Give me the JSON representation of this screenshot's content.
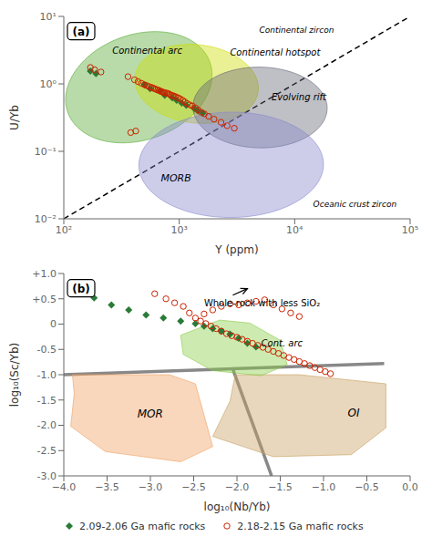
{
  "chart_data": [
    {
      "type": "scatter",
      "title": "(a)",
      "xlabel": "Y (ppm)",
      "ylabel": "U/Yb",
      "log": true,
      "xlim": [
        100,
        100000
      ],
      "ylim": [
        0.01,
        10
      ],
      "xticks": [
        {
          "value": 100,
          "label": "10²"
        },
        {
          "value": 1000,
          "label": "10³"
        },
        {
          "value": 10000,
          "label": "10⁴"
        },
        {
          "value": 100000,
          "label": "10⁵"
        }
      ],
      "yticks": [
        {
          "value": 0.01,
          "label": "10⁻²"
        },
        {
          "value": 0.1,
          "label": "10⁻¹"
        },
        {
          "value": 1,
          "label": "10⁰"
        },
        {
          "value": 10,
          "label": "10¹"
        }
      ],
      "grid": false,
      "regions": [
        {
          "name": "Continental arc",
          "shape": "ellipse",
          "color": "#55aa33",
          "cx_log10": 2.65,
          "cy_log10": -0.05,
          "rx": 0.6,
          "ry": 0.85,
          "angle": -20
        },
        {
          "name": "Continental hotspot",
          "shape": "ellipse",
          "color": "#ccdd00",
          "cx_log10": 3.15,
          "cy_log10": 0.0,
          "rx": 0.52,
          "ry": 0.6,
          "angle": 25
        },
        {
          "name": "Evolving rift",
          "shape": "ellipse",
          "color": "#666677",
          "cx_log10": 3.7,
          "cy_log10": -0.35,
          "rx": 0.58,
          "ry": 0.6,
          "angle": 15
        },
        {
          "name": "MORB",
          "shape": "ellipse",
          "color": "#8888cc",
          "cx_log10": 3.45,
          "cy_log10": -1.2,
          "rx": 0.8,
          "ry": 0.78,
          "angle": 10
        }
      ],
      "lines": [
        {
          "x": [
            100,
            100000
          ],
          "y": [
            0.01,
            10
          ],
          "color": "#000000",
          "line_style": "dashed"
        }
      ],
      "annotations": [
        "Continental zircon",
        "Oceanic crust zircon"
      ],
      "series": [
        {
          "color": "#2a7a38",
          "marker": "diamond",
          "x": [
            170,
            190,
            500,
            560,
            680,
            750,
            870,
            950,
            1050,
            1150,
            1350,
            1450,
            1600
          ],
          "values": [
            1.55,
            1.42,
            0.97,
            0.85,
            0.78,
            0.68,
            0.62,
            0.57,
            0.52,
            0.48,
            0.43,
            0.4,
            0.37
          ]
        },
        {
          "color": "#cc2200",
          "marker": "circle",
          "x": [
            170,
            185,
            210,
            360,
            410,
            440,
            470,
            500,
            525,
            550,
            570,
            590,
            610,
            630,
            650,
            670,
            690,
            710,
            730,
            750,
            775,
            800,
            825,
            850,
            875,
            900,
            940,
            980,
            1020,
            1070,
            1120,
            1170,
            1230,
            1300,
            1380,
            1460,
            1550,
            1650,
            1800,
            2000,
            2300,
            2600,
            3000,
            420,
            380
          ],
          "values": [
            1.75,
            1.62,
            1.5,
            1.28,
            1.15,
            1.08,
            1.02,
            0.97,
            0.94,
            0.91,
            0.89,
            0.87,
            0.85,
            0.83,
            0.81,
            0.8,
            0.78,
            0.76,
            0.75,
            0.74,
            0.73,
            0.72,
            0.7,
            0.68,
            0.67,
            0.66,
            0.64,
            0.62,
            0.6,
            0.57,
            0.54,
            0.51,
            0.49,
            0.47,
            0.44,
            0.41,
            0.38,
            0.36,
            0.33,
            0.3,
            0.27,
            0.24,
            0.22,
            0.2,
            0.19
          ]
        }
      ]
    },
    {
      "type": "scatter",
      "title": "(b)",
      "xlabel": "log₁₀(Nb/Yb)",
      "ylabel": "log₁₀(Sc/Yb)",
      "xlim": [
        -4.0,
        0
      ],
      "ylim": [
        -3.0,
        1.0
      ],
      "xticks": [
        {
          "value": -4.0,
          "label": "−4.0"
        },
        {
          "value": -3.5,
          "label": "−3.5"
        },
        {
          "value": -3.0,
          "label": "−3.0"
        },
        {
          "value": -2.5,
          "label": "−2.5"
        },
        {
          "value": -2.0,
          "label": "−2.0"
        },
        {
          "value": -1.5,
          "label": "−1.5"
        },
        {
          "value": -1.0,
          "label": "−1.0"
        },
        {
          "value": -0.5,
          "label": "−0.5"
        },
        {
          "value": 0.0,
          "label": "0.0"
        }
      ],
      "yticks": [
        {
          "value": -3.0,
          "label": "-3.0"
        },
        -2.5,
        {
          "value": -2.0,
          "label": "-2.0"
        },
        -1.5,
        {
          "value": -1.0,
          "label": "-1.0"
        },
        -0.5,
        0,
        {
          "value": 0.5,
          "label": "+0.5"
        },
        {
          "value": 1.0,
          "label": "+1.0"
        }
      ],
      "grid": false,
      "legend": "bottom",
      "regions": [
        {
          "name": "MOR",
          "shape": "polygon",
          "color": "#f0a060",
          "label_xy": [
            -3.15,
            -1.85
          ],
          "points": [
            [
              -3.9,
              -1.0
            ],
            [
              -2.78,
              -1.0
            ],
            [
              -2.48,
              -1.18
            ],
            [
              -2.28,
              -2.42
            ],
            [
              -2.65,
              -2.72
            ],
            [
              -3.52,
              -2.52
            ],
            [
              -3.92,
              -2.02
            ],
            [
              -3.88,
              -1.38
            ]
          ]
        },
        {
          "name": "OI",
          "shape": "polygon",
          "color": "#c8a060",
          "label_xy": [
            -0.72,
            -1.82
          ],
          "points": [
            [
              -2.02,
              -1.0
            ],
            [
              -1.28,
              -1.0
            ],
            [
              -0.28,
              -1.18
            ],
            [
              -0.28,
              -2.05
            ],
            [
              -0.68,
              -2.58
            ],
            [
              -1.58,
              -2.62
            ],
            [
              -2.28,
              -2.22
            ],
            [
              -2.08,
              -1.52
            ]
          ]
        },
        {
          "name": "Cont. arc",
          "shape": "polygon",
          "color": "#88cc44",
          "label_xy": [
            -1.72,
            -0.45
          ],
          "points": [
            [
              -2.65,
              -0.22
            ],
            [
              -2.2,
              0.08
            ],
            [
              -1.85,
              0.02
            ],
            [
              -1.5,
              -0.32
            ],
            [
              -1.42,
              -0.8
            ],
            [
              -1.72,
              -1.02
            ],
            [
              -2.28,
              -0.92
            ],
            [
              -2.62,
              -0.6
            ]
          ]
        }
      ],
      "lines": [
        {
          "x": [
            -4.0,
            -0.3
          ],
          "y": [
            -1.0,
            -0.78
          ],
          "color": "#888888",
          "line_style": "solid"
        },
        {
          "x": [
            -2.05,
            -1.6
          ],
          "y": [
            -0.88,
            -3.0
          ],
          "color": "#888888",
          "line_style": "solid"
        }
      ],
      "annotations": [
        {
          "text": "Whole-rock with less SiO₂",
          "xy": [
            -1.88,
            0.7
          ],
          "xytext": [
            -2.38,
            0.32
          ]
        }
      ],
      "series": [
        {
          "name": "2.09-2.06 Ga mafic rocks",
          "color": "#2a7a38",
          "marker": "diamond",
          "x": [
            -3.65,
            -3.45,
            -3.25,
            -3.05,
            -2.85,
            -2.65,
            -2.48,
            -2.38,
            -2.28,
            -2.18,
            -2.08,
            -1.98,
            -1.88,
            -1.78
          ],
          "values": [
            0.52,
            0.38,
            0.28,
            0.18,
            0.12,
            0.06,
            0.01,
            -0.04,
            -0.09,
            -0.14,
            -0.2,
            -0.28,
            -0.38,
            -0.45
          ]
        },
        {
          "name": "2.18-2.15 Ga mafic rocks",
          "color": "#cc2200",
          "marker": "circle",
          "x": [
            -2.95,
            -2.82,
            -2.72,
            -2.62,
            -2.55,
            -2.48,
            -2.42,
            -2.36,
            -2.3,
            -2.24,
            -2.18,
            -2.12,
            -2.06,
            -2.0,
            -1.94,
            -1.88,
            -1.82,
            -1.76,
            -1.7,
            -1.64,
            -1.58,
            -1.52,
            -1.46,
            -1.4,
            -1.34,
            -1.28,
            -1.22,
            -1.16,
            -1.1,
            -1.04,
            -0.98,
            -0.92,
            -2.38,
            -2.28,
            -2.18,
            -2.08,
            -1.98,
            -1.88,
            -1.78,
            -1.68,
            -1.58,
            -1.48,
            -1.38,
            -1.28
          ],
          "values": [
            0.6,
            0.5,
            0.42,
            0.35,
            0.22,
            0.12,
            0.06,
            0.01,
            -0.04,
            -0.09,
            -0.14,
            -0.19,
            -0.23,
            -0.26,
            -0.3,
            -0.34,
            -0.38,
            -0.42,
            -0.46,
            -0.5,
            -0.54,
            -0.58,
            -0.62,
            -0.66,
            -0.7,
            -0.74,
            -0.78,
            -0.82,
            -0.86,
            -0.9,
            -0.94,
            -0.98,
            0.2,
            0.28,
            0.35,
            0.4,
            0.38,
            0.42,
            0.45,
            0.48,
            0.38,
            0.3,
            0.22,
            0.15
          ]
        }
      ]
    }
  ]
}
